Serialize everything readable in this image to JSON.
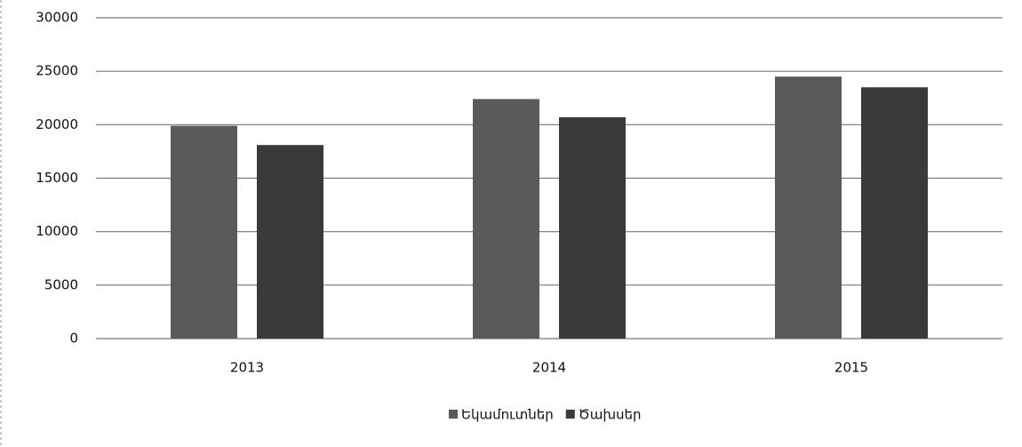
{
  "chart_data": {
    "type": "bar",
    "categories": [
      "2013",
      "2014",
      "2015"
    ],
    "series": [
      {
        "name": "Եկամուտներ",
        "color": "#5a5a5a",
        "values": [
          19900,
          22400,
          24500
        ]
      },
      {
        "name": "Ծախսեր",
        "color": "#3a3a3a",
        "values": [
          18100,
          20700,
          23500
        ]
      }
    ],
    "ylim": [
      0,
      30000
    ],
    "yticks": [
      0,
      5000,
      10000,
      15000,
      20000,
      25000,
      30000
    ],
    "grid": true,
    "legend": "bottom"
  }
}
